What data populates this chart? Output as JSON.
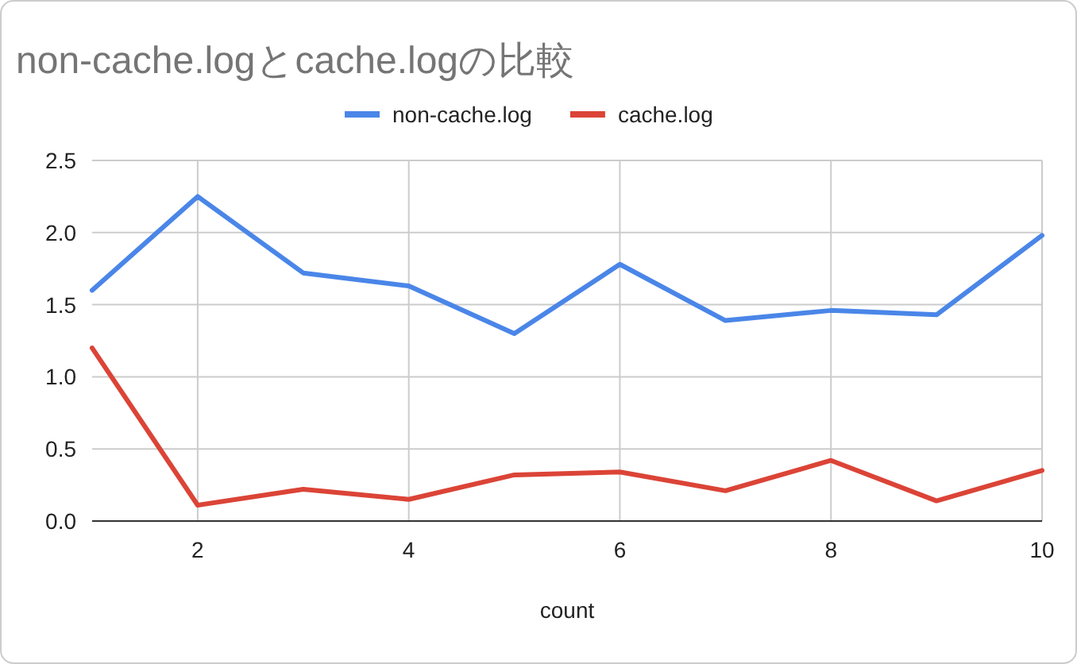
{
  "chart_data": {
    "type": "line",
    "title": "non-cache.logとcache.logの比較",
    "xlabel": "count",
    "x": [
      1,
      2,
      3,
      4,
      5,
      6,
      7,
      8,
      9,
      10
    ],
    "series": [
      {
        "name": "non-cache.log",
        "color": "#4a86e8",
        "values": [
          1.6,
          2.25,
          1.72,
          1.63,
          1.3,
          1.78,
          1.39,
          1.46,
          1.43,
          1.98
        ]
      },
      {
        "name": "cache.log",
        "color": "#db4437",
        "values": [
          1.2,
          0.11,
          0.22,
          0.15,
          0.32,
          0.34,
          0.21,
          0.42,
          0.14,
          0.35
        ]
      }
    ],
    "xlim": [
      1,
      10
    ],
    "xticks": [
      2,
      4,
      6,
      8,
      10
    ],
    "ylim": [
      0,
      2.5
    ],
    "yticks": [
      {
        "value": 0,
        "label": "0.0"
      },
      {
        "value": 0.5,
        "label": "0.5"
      },
      {
        "value": 1,
        "label": "1.0"
      },
      {
        "value": 1.5,
        "label": "1.5"
      },
      {
        "value": 2,
        "label": "2.0"
      },
      {
        "value": 2.5,
        "label": "2.5"
      }
    ],
    "grid": true,
    "legend": "top",
    "marker": "none",
    "line_style": "solid"
  }
}
